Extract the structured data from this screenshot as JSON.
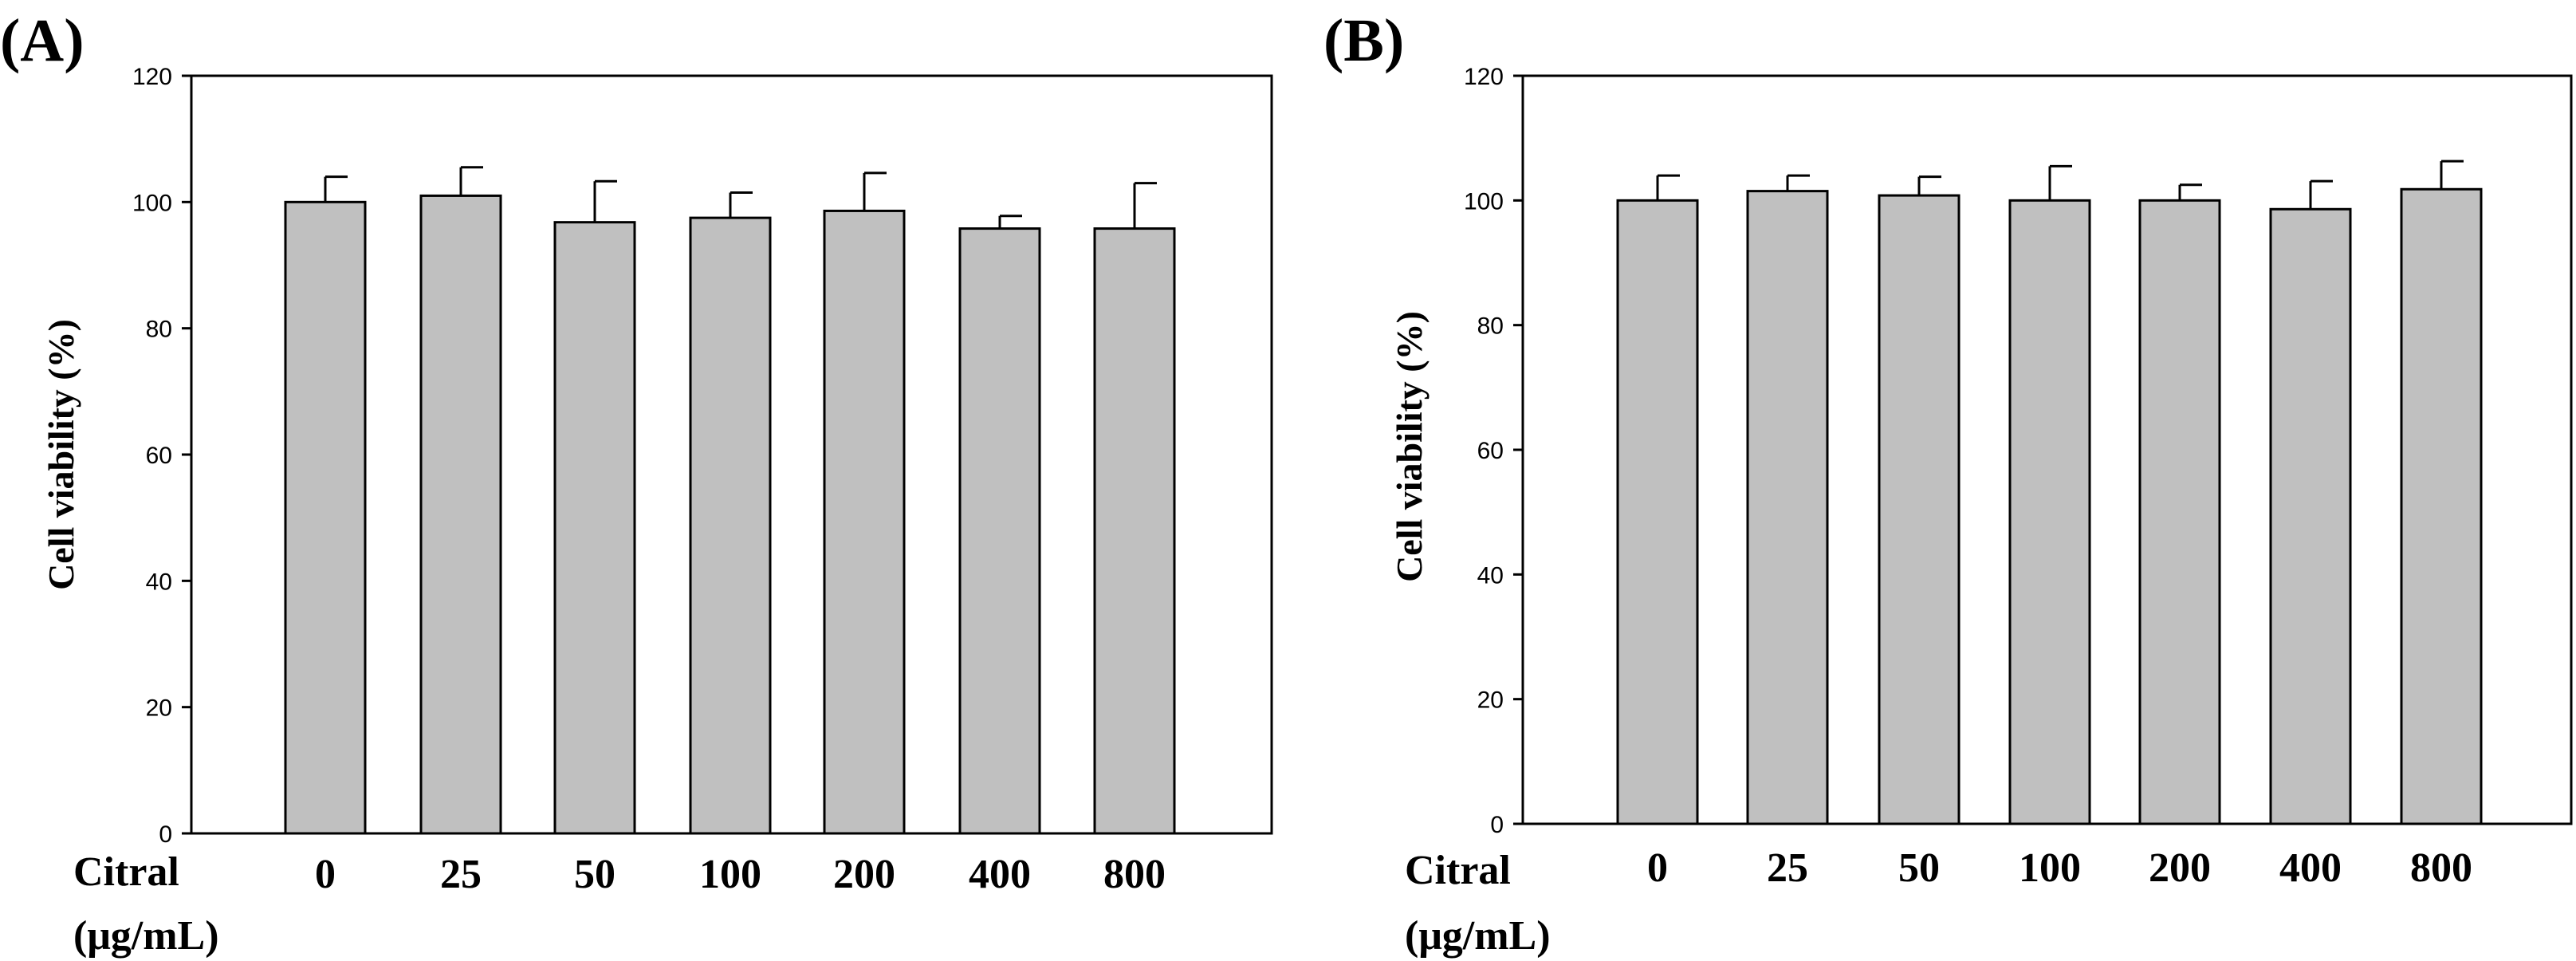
{
  "colors": {
    "bar_fill": "#c0c0c0",
    "bar_stroke": "#000000",
    "background": "#ffffff"
  },
  "chart_data": [
    {
      "panel": "(A)",
      "type": "bar",
      "categories": [
        "0",
        "25",
        "50",
        "100",
        "200",
        "400",
        "800"
      ],
      "values": [
        100,
        101,
        96.8,
        97.5,
        98.6,
        95.8,
        95.8
      ],
      "errors": [
        4,
        4.5,
        6.5,
        4,
        6,
        2,
        7.2
      ],
      "ylabel": "Cell viability (%)",
      "xlabel_line1": "Citral",
      "xlabel_line2": "(μg/mL)",
      "ylim": [
        0,
        120
      ],
      "yticks": [
        0,
        20,
        40,
        60,
        80,
        100,
        120
      ]
    },
    {
      "panel": "(B)",
      "type": "bar",
      "categories": [
        "0",
        "25",
        "50",
        "100",
        "200",
        "400",
        "800"
      ],
      "values": [
        100,
        101.5,
        100.8,
        100,
        100,
        98.6,
        101.8
      ],
      "errors": [
        4,
        2.5,
        3,
        5.5,
        2.5,
        4.5,
        4.5
      ],
      "ylabel": "Cell viability (%)",
      "xlabel_line1": "Citral",
      "xlabel_line2": "(μg/mL)",
      "ylim": [
        0,
        120
      ],
      "yticks": [
        0,
        20,
        40,
        60,
        80,
        100,
        120
      ]
    }
  ]
}
